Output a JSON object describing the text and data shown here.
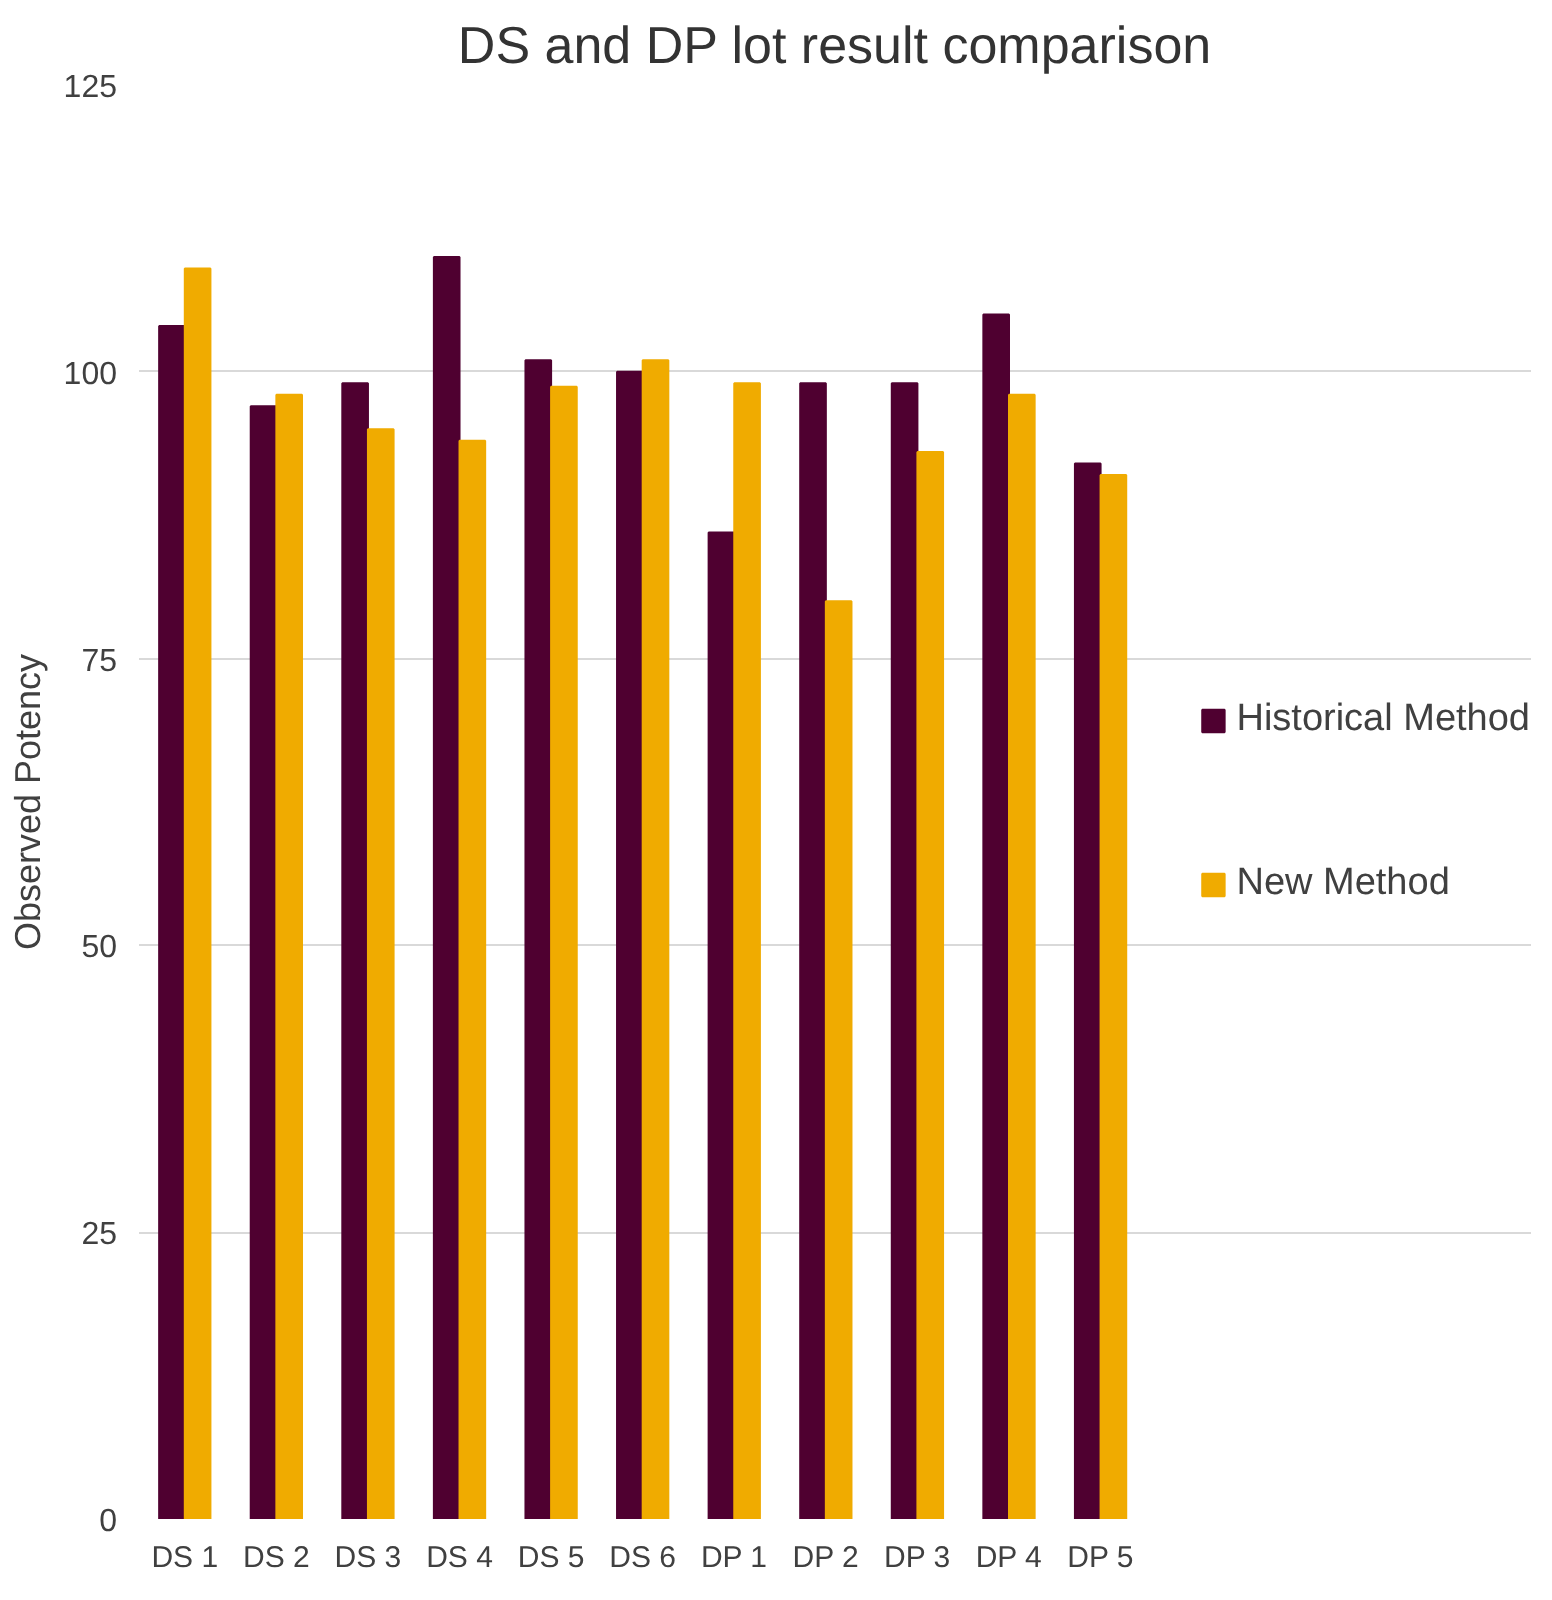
{
  "chart_data": {
    "type": "bar",
    "title": "DS and DP lot result comparison",
    "ylabel": "Observed Potency",
    "categories": [
      "DS 1",
      "DS 2",
      "DS 3",
      "DS 4",
      "DS 5",
      "DS 6",
      "DP 1",
      "DP 2",
      "DP 3",
      "DP 4",
      "DP 5"
    ],
    "series": [
      {
        "name": "Historical Method",
        "color": "#4f0030",
        "values": [
          104,
          97,
          99,
          110,
          101,
          100,
          86,
          99,
          99,
          105,
          92
        ]
      },
      {
        "name": "New Method",
        "color": "#f0ab00",
        "values": [
          109,
          98,
          95,
          94,
          98.7,
          101,
          99,
          80,
          93,
          98,
          91
        ]
      }
    ],
    "ylim": [
      0,
      125
    ],
    "yticks": [
      0,
      25,
      50,
      75,
      100,
      125
    ],
    "grid": "y",
    "legend": "right"
  }
}
